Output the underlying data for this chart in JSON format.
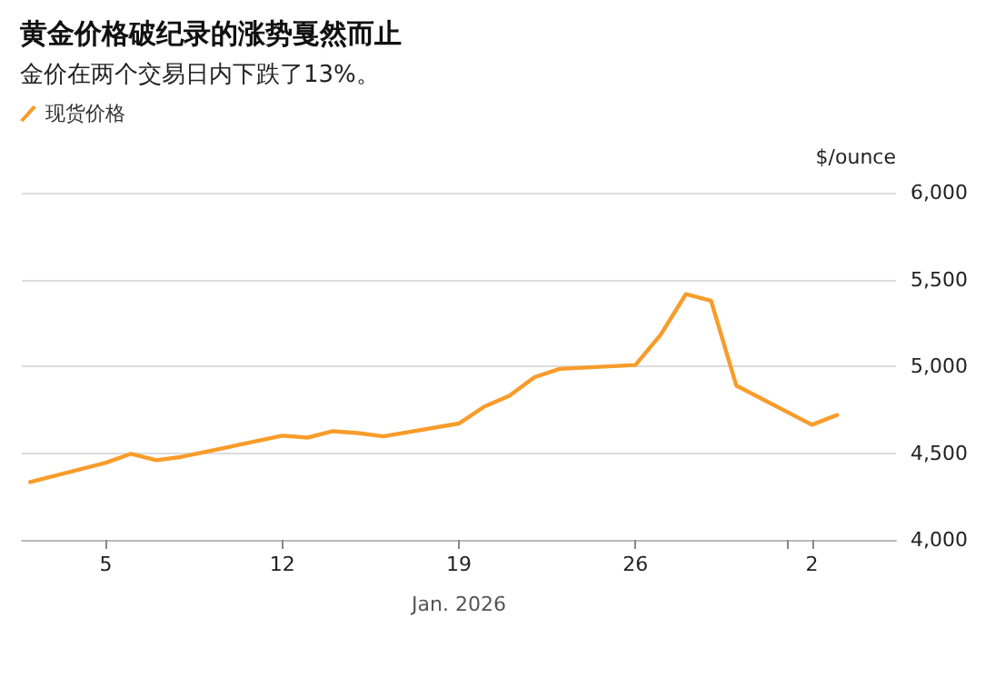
{
  "chart_data": {
    "type": "line",
    "title": "黄金价格破纪录的涨势戛然而止",
    "subtitle": "金价在两个交易日内下跌了13%。",
    "ylabel": "$/ounce",
    "xlabel": "Jan. 2026",
    "x": [
      "2026-01-02",
      "2026-01-05",
      "2026-01-06",
      "2026-01-07",
      "2026-01-08",
      "2026-01-12",
      "2026-01-13",
      "2026-01-14",
      "2026-01-15",
      "2026-01-16",
      "2026-01-19",
      "2026-01-20",
      "2026-01-21",
      "2026-01-22",
      "2026-01-23",
      "2026-01-26",
      "2026-01-27",
      "2026-01-28",
      "2026-01-29",
      "2026-01-30",
      "2026-02-02",
      "2026-02-03"
    ],
    "series": [
      {
        "name": "现货价格",
        "color": "#f89c2a",
        "values": [
          4333,
          4444,
          4496,
          4459,
          4478,
          4600,
          4589,
          4626,
          4615,
          4596,
          4670,
          4767,
          4830,
          4937,
          4985,
          5007,
          5181,
          5415,
          5378,
          4889,
          4663,
          4719
        ]
      }
    ],
    "xlim": [
      "2026-01-01T16:00",
      "2026-02-05T08:00"
    ],
    "xticks": [
      {
        "value": "2026-01-05",
        "label": "5"
      },
      {
        "value": "2026-01-12",
        "label": "12"
      },
      {
        "value": "2026-01-19",
        "label": "19"
      },
      {
        "value": "2026-01-26",
        "label": "26"
      },
      {
        "value": "2026-02-01",
        "label": null
      },
      {
        "value": "2026-02-02",
        "label": "2"
      }
    ],
    "ylim": [
      4000,
      6000
    ],
    "yticks": [
      {
        "value": 4000,
        "label": "4,000"
      },
      {
        "value": 4500,
        "label": "4,500"
      },
      {
        "value": 5000,
        "label": "5,000"
      },
      {
        "value": 5500,
        "label": "5,500"
      },
      {
        "value": 6000,
        "label": "6,000"
      }
    ],
    "grid": "y",
    "legend": "top left",
    "marker": "none",
    "line_style": "solid"
  }
}
